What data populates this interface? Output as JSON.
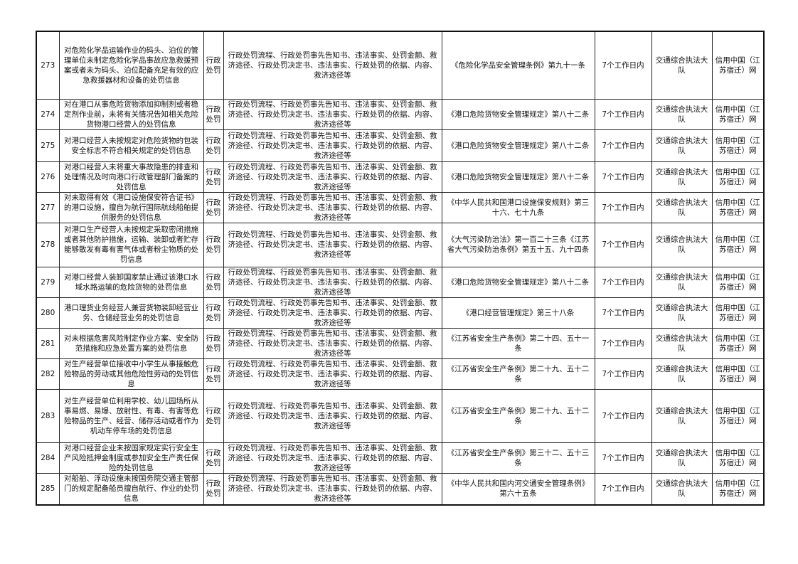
{
  "rows": [
    {
      "no": "273",
      "item": "对危险化学品运输作业的码头、泊位的管理单位未制定危险化学品事故应急救援预案或者未为码头、泊位配备充足有效的应急救援器材和设备的处罚信息",
      "type": "行政处罚",
      "content": "行政处罚流程、行政处罚事先告知书、违法事实、处罚金额、救济途径、行政处罚决定书、违法事实、行政处罚的依据、内容、救济途径等",
      "basis": "《危险化学品安全管理条例》第九十一条",
      "time": "7个工作日内",
      "dept": "交通综合执法大队",
      "channel": "信用中国（江苏宿迁）网"
    },
    {
      "no": "274",
      "item": "对在港口从事危险货物添加抑制剂或者稳定剂作业前，未将有关情况告知相关危险货物港口经营人的处罚信息",
      "type": "行政处罚",
      "content": "行政处罚流程、行政处罚事先告知书、违法事实、处罚金额、救济途径、行政处罚决定书、违法事实、行政处罚的依据、内容、救济途径等",
      "basis": "《港口危险货物安全管理规定》第八十二条",
      "time": "7个工作日内",
      "dept": "交通综合执法大队",
      "channel": "信用中国（江苏宿迁）网"
    },
    {
      "no": "275",
      "item": "对港口经营人未按规定对危险货物的包装安全标志不符合相关规定的处罚信息",
      "type": "行政处罚",
      "content": "行政处罚流程、行政处罚事先告知书、违法事实、处罚金额、救济途径、行政处罚决定书、违法事实、行政处罚的依据、内容、救济途径等",
      "basis": "《港口危险货物安全管理规定》第八十二条",
      "time": "7个工作日内",
      "dept": "交通综合执法大队",
      "channel": "信用中国（江苏宿迁）网"
    },
    {
      "no": "276",
      "item": "对港口经营人未将重大事故隐患的排查和处理情况及时向港口行政管理部门备案的处罚信息",
      "type": "行政处罚",
      "content": "行政处罚流程、行政处罚事先告知书、违法事实、处罚金额、救济途径、行政处罚决定书、违法事实、行政处罚的依据、内容、救济途径等",
      "basis": "《港口危险货物安全管理规定》第八十二条",
      "time": "7个工作日内",
      "dept": "交通综合执法大队",
      "channel": "信用中国（江苏宿迁）网"
    },
    {
      "no": "277",
      "item": "对未取得有效《港口设施保安符合证书》的港口设施，擅自为航行国际航线船舶提供服务的处罚信息",
      "type": "行政处罚",
      "content": "行政处罚流程、行政处罚事先告知书、违法事实、处罚金额、救济途径、行政处罚决定书、违法事实、行政处罚的依据、内容、救济途径等",
      "basis": "《中华人民共和国港口设施保安规则》第三十六、七十九条",
      "time": "7个工作日内",
      "dept": "交通综合执法大队",
      "channel": "信用中国（江苏宿迁）网"
    },
    {
      "no": "278",
      "item": "对港口生产经营人未按规定采取密闭措施或者其他防护措施，运输、装卸或者贮存能够散发有毒有害气体或者粉尘物质的处罚信息",
      "type": "行政处罚",
      "content": "行政处罚流程、行政处罚事先告知书、违法事实、处罚金额、救济途径、行政处罚决定书、违法事实、行政处罚的依据、内容、救济途径等",
      "basis": "《大气污染防治法》第一百二十三条《江苏省大气污染防治条例》第五十五、九十四条",
      "time": "7个工作日内",
      "dept": "交通综合执法大队",
      "channel": "信用中国（江苏宿迁）网"
    },
    {
      "no": "279",
      "item": "对港口经营人装卸国家禁止通过该港口水域水路运输的危险货物的处罚信息",
      "type": "行政处罚",
      "content": "行政处罚流程、行政处罚事先告知书、违法事实、处罚金额、救济途径、行政处罚决定书、违法事实、行政处罚的依据、内容、救济途径等",
      "basis": "《港口危险货物安全管理规定》第八十二条",
      "time": "7个工作日内",
      "dept": "交通综合执法大队",
      "channel": "信用中国（江苏宿迁）网"
    },
    {
      "no": "280",
      "item": "港口理货业务经营人兼营货物装卸经营业务、仓储经营业务的处罚信息",
      "type": "行政处罚",
      "content": "行政处罚流程、行政处罚事先告知书、违法事实、处罚金额、救济途径、行政处罚决定书、违法事实、行政处罚的依据、内容、救济途径等",
      "basis": "《港口经营管理规定》第三十八条",
      "time": "7个工作日内",
      "dept": "交通综合执法大队",
      "channel": "信用中国（江苏宿迁）网"
    },
    {
      "no": "281",
      "item": "对未根据危害风险制定作业方案、安全防范措施和应急处置方案的处罚信息",
      "type": "行政处罚",
      "content": "行政处罚流程、行政处罚事先告知书、违法事实、处罚金额、救济途径、行政处罚决定书、违法事实、行政处罚的依据、内容、救济途径等",
      "basis": "《江苏省安全生产条例》第二十四、五十一条",
      "time": "7个工作日内",
      "dept": "交通综合执法大队",
      "channel": "信用中国（江苏宿迁）网"
    },
    {
      "no": "282",
      "item": "对生产经营单位接收中小学生从事接触危险物品的劳动或其他危险性劳动的处罚信息",
      "type": "行政处罚",
      "content": "行政处罚流程、行政处罚事先告知书、违法事实、处罚金额、救济途径、行政处罚决定书、违法事实、行政处罚的依据、内容、救济途径等",
      "basis": "《江苏省安全生产条例》第二十九、五十二条",
      "time": "7个工作日内",
      "dept": "交通综合执法大队",
      "channel": "信用中国（江苏宿迁）网"
    },
    {
      "no": "283",
      "item": "对生产经营单位利用学校、幼儿园场所从事易燃、易爆、放射性、有毒、有害等危险物品的生产、经营、储存活动或者作为机动车停车场的处罚信息",
      "type": "行政处罚",
      "content": "行政处罚流程、行政处罚事先告知书、违法事实、处罚金额、救济途径、行政处罚决定书、违法事实、行政处罚的依据、内容、救济途径等",
      "basis": "《江苏省安全生产条例》第二十九、五十二条",
      "time": "7个工作日内",
      "dept": "交通综合执法大队",
      "channel": "信用中国（江苏宿迁）网"
    },
    {
      "no": "284",
      "item": "对港口经营企业未按国家规定实行安全生产风险抵押金制度或参加安全生产责任保险的处罚信息",
      "type": "行政处罚",
      "content": "行政处罚流程、行政处罚事先告知书、违法事实、处罚金额、救济途径、行政处罚决定书、违法事实、行政处罚的依据、内容、救济途径等",
      "basis": "《江苏省安全生产条例》第三十二、五十三条",
      "time": "7个工作日内",
      "dept": "交通综合执法大队",
      "channel": "信用中国（江苏宿迁）网"
    },
    {
      "no": "285",
      "item": "对船舶、浮动设施未按国务院交通主管部门的规定配备船员擅自航行、作业的处罚信息",
      "type": "行政处罚",
      "content": "行政处罚流程、行政处罚事先告知书、违法事实、处罚金额、救济途径、行政处罚决定书、违法事实、行政处罚的依据、内容、救济途径等",
      "basis": "《中华人民共和国内河交通安全管理条例》第六十五条",
      "time": "7个工作日内",
      "dept": "交通综合执法大队",
      "channel": "信用中国（江苏宿迁）网"
    }
  ]
}
